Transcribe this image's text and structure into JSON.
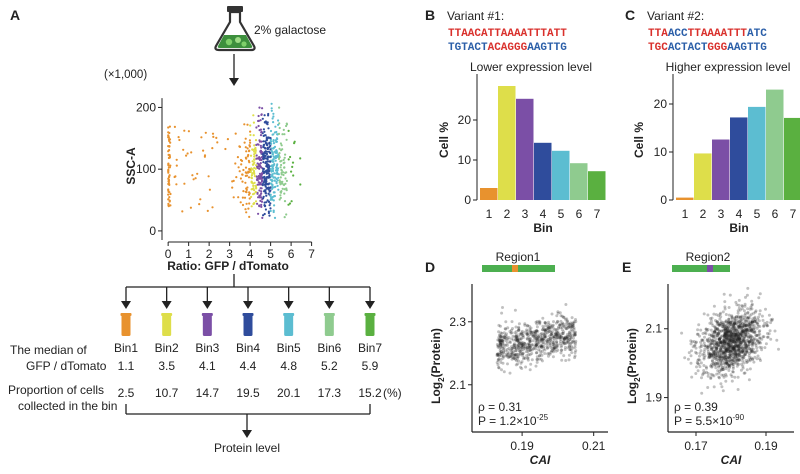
{
  "panels": {
    "A": {
      "letter": "A",
      "flask_label": "2% galactose",
      "scatter": {
        "multiplier": "(×1,000)",
        "ylabel": "SSC-A",
        "xlabel": "Ratio: GFP / dTomato",
        "yticks": [
          0,
          100,
          200
        ],
        "xticks": [
          0,
          1,
          2,
          3,
          4,
          5,
          6,
          7
        ],
        "xlim": [
          -0.3,
          7.8
        ],
        "ylim": [
          -5,
          225
        ],
        "bin_edges": [
          4.0,
          4.3,
          4.6,
          5.0,
          5.4,
          5.8
        ]
      },
      "median_label_1": "The median of",
      "median_label_2": "GFP / dTomato",
      "proportion_label_1": "Proportion of cells",
      "proportion_label_2": "collected in the bin",
      "percent_unit": "(%)",
      "protein_level": "Protein level",
      "bins": [
        {
          "name": "Bin1",
          "median": "1.1",
          "proportion": "2.5",
          "color": "#E8922E"
        },
        {
          "name": "Bin2",
          "median": "3.5",
          "proportion": "10.7",
          "color": "#DEDE4A"
        },
        {
          "name": "Bin3",
          "median": "4.1",
          "proportion": "14.7",
          "color": "#7B4FA6"
        },
        {
          "name": "Bin4",
          "median": "4.4",
          "proportion": "19.5",
          "color": "#2F4C9C"
        },
        {
          "name": "Bin5",
          "median": "4.8",
          "proportion": "20.1",
          "color": "#5CBDD1"
        },
        {
          "name": "Bin6",
          "median": "5.2",
          "proportion": "17.3",
          "color": "#8FCB8F"
        },
        {
          "name": "Bin7",
          "median": "5.9",
          "proportion": "15.2",
          "color": "#5AB040"
        }
      ]
    },
    "B": {
      "letter": "B",
      "title": "Variant  #1:",
      "seq_top": [
        "TTAACATTAAAATTTATT"
      ],
      "seq_bottom": [
        {
          "t": "TGTACT",
          "c": "#2a5ea8"
        },
        {
          "t": "ACAGGG",
          "c": "#d9302c"
        },
        {
          "t": "AAGTTG",
          "c": "#2a5ea8"
        }
      ]
    },
    "C": {
      "letter": "C",
      "title": "Variant  #2:",
      "seq_top": [
        {
          "t": "TTA",
          "c": "#d9302c"
        },
        {
          "t": "ACC",
          "c": "#2a5ea8"
        },
        {
          "t": "TTAAAATTT",
          "c": "#d9302c"
        },
        {
          "t": "ATC",
          "c": "#2a5ea8"
        }
      ],
      "seq_bottom": [
        {
          "t": "TGC",
          "c": "#d9302c"
        },
        {
          "t": "ACTACT",
          "c": "#2a5ea8"
        },
        {
          "t": "GGG",
          "c": "#d9302c"
        },
        {
          "t": "AAGTTG",
          "c": "#2a5ea8"
        }
      ]
    },
    "D": {
      "letter": "D",
      "region": "Region1",
      "rho": "ρ = 0.31",
      "p_base": "P = 1.2×10",
      "p_exp": "-25"
    },
    "E": {
      "letter": "E",
      "region": "Region2",
      "rho": "ρ = 0.39",
      "p_base": "P = 5.5×10",
      "p_exp": "-90"
    }
  },
  "chart_data": [
    {
      "id": "B",
      "type": "bar",
      "title": "Lower expression level",
      "xlabel": "Bin",
      "ylabel": "Cell %",
      "categories": [
        "1",
        "2",
        "3",
        "4",
        "5",
        "6",
        "7"
      ],
      "values": [
        3,
        28.5,
        25.3,
        14.3,
        12.3,
        9.2,
        7.2
      ],
      "colors": [
        "#E8922E",
        "#DEDE4A",
        "#7B4FA6",
        "#2F4C9C",
        "#5CBDD1",
        "#8FCB8F",
        "#5AB040"
      ],
      "yticks": [
        0,
        10,
        20
      ],
      "ylim": [
        0,
        30
      ]
    },
    {
      "id": "C",
      "type": "bar",
      "title": "Higher expression level",
      "xlabel": "Bin",
      "ylabel": "Cell %",
      "categories": [
        "1",
        "2",
        "3",
        "4",
        "5",
        "6",
        "7"
      ],
      "values": [
        0.5,
        9.7,
        12.6,
        17.2,
        19.4,
        23.0,
        17.1
      ],
      "colors": [
        "#E8922E",
        "#DEDE4A",
        "#7B4FA6",
        "#2F4C9C",
        "#5CBDD1",
        "#8FCB8F",
        "#5AB040"
      ],
      "yticks": [
        0,
        10,
        20
      ],
      "ylim": [
        0,
        25
      ]
    },
    {
      "id": "D",
      "type": "scatter",
      "xlabel": "CAI",
      "ylabel_base": "Log",
      "ylabel_sub": "2",
      "ylabel_rest": "(Protein)",
      "xticks": [
        "0.19",
        "0.21"
      ],
      "xtick_values": [
        0.19,
        0.21
      ],
      "yticks": [
        "2.1",
        "2.3"
      ],
      "ytick_values": [
        2.1,
        2.3
      ],
      "xlim": [
        0.176,
        0.214
      ],
      "ylim": [
        1.95,
        2.42
      ],
      "cloud": {
        "x_range": [
          0.183,
          0.205
        ],
        "y_center": 2.24,
        "slope": 2.0,
        "y_sd": 0.035,
        "n": 700
      }
    },
    {
      "id": "E",
      "type": "scatter",
      "xlabel": "CAI",
      "ylabel_base": "Log",
      "ylabel_sub": "2",
      "ylabel_rest": "(Protein)",
      "xticks": [
        "0.17",
        "0.19"
      ],
      "xtick_values": [
        0.17,
        0.19
      ],
      "yticks": [
        "1.9",
        "2.1"
      ],
      "ytick_values": [
        1.9,
        2.1
      ],
      "xlim": [
        0.162,
        0.198
      ],
      "ylim": [
        1.8,
        2.23
      ],
      "cloud": {
        "x_center": 0.18,
        "x_sd": 0.0045,
        "y_center": 2.06,
        "slope": 3.0,
        "y_sd": 0.045,
        "n": 1200
      }
    }
  ]
}
